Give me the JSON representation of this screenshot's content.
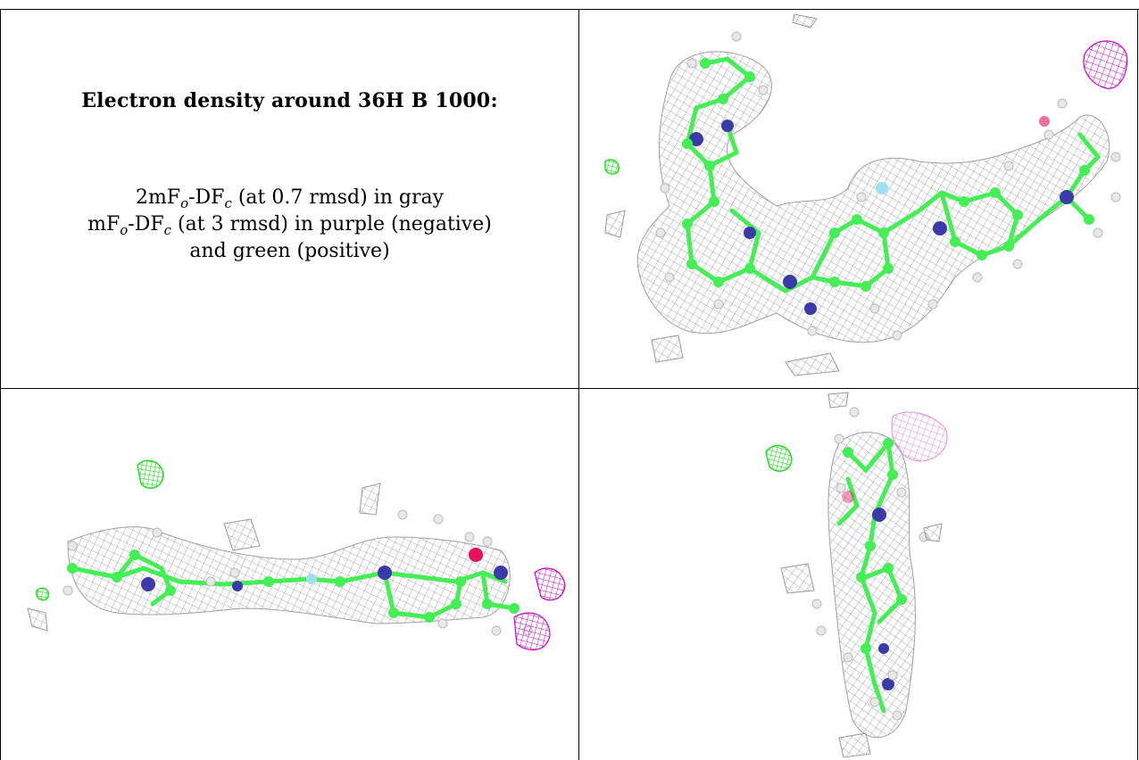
{
  "caption": {
    "title": "Electron density around 36H B 1000:",
    "line1": {
      "a": "2mF",
      "sub_o": "o",
      "b": "-DF",
      "sub_c": "c",
      "rest": " (at 0.7 rmsd) in gray"
    },
    "line2": {
      "a": "mF",
      "sub_o": "o",
      "b": "-DF",
      "sub_c": "c",
      "rest": " (at 3 rmsd) in purple (negative)"
    },
    "line3": "and green (positive)"
  },
  "colors": {
    "mesh_gray": "#8f8f8f",
    "negative_purple": "#cc00cc",
    "positive_green": "#22dd22",
    "carbon_green": "#44ee55",
    "nitrogen_blue": "#3a3aa8",
    "oxygen_red": "#e8105a",
    "fluorine_cyan": "#9fe0f0",
    "hydrogen_white": "#e8e8e8",
    "border": "#000000"
  },
  "views": [
    {
      "name": "view-top-right",
      "orientation": "front"
    },
    {
      "name": "view-bottom-left",
      "orientation": "side"
    },
    {
      "name": "view-bottom-right",
      "orientation": "end-on"
    }
  ]
}
